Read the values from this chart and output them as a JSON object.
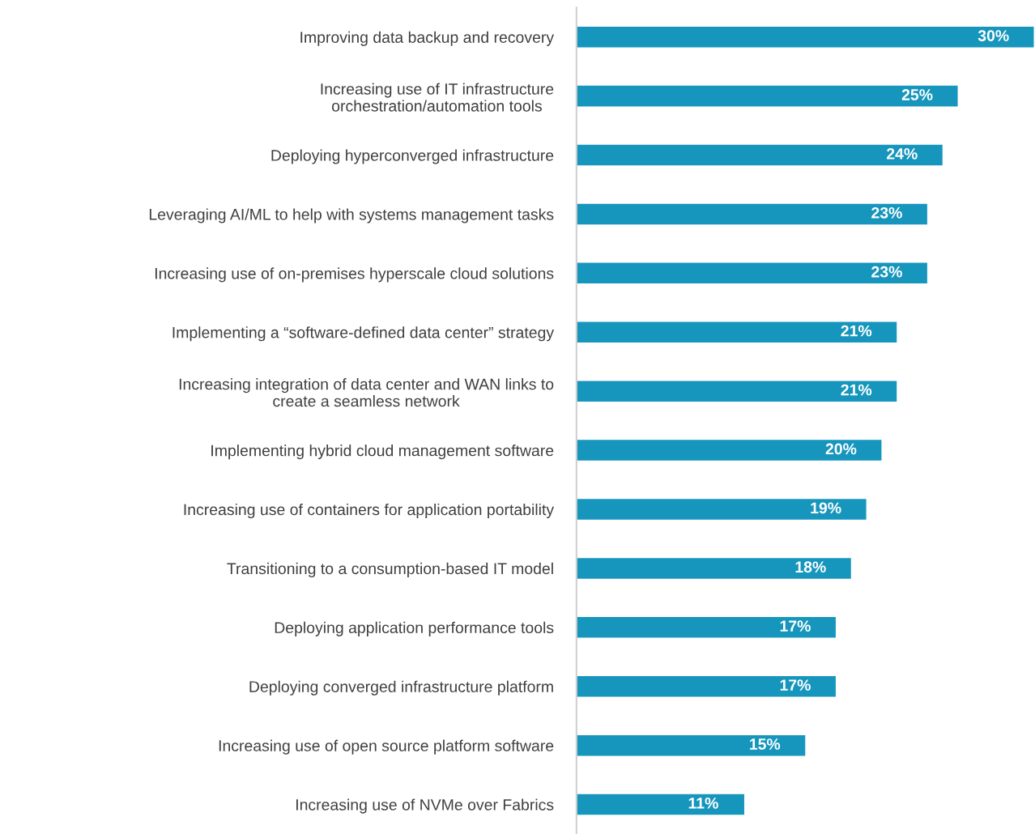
{
  "chart_data": {
    "type": "bar",
    "orientation": "horizontal",
    "categories": [
      "Improving data backup and recovery",
      "Increasing use of IT infrastructure\norchestration/automation tools",
      "Deploying hyperconverged infrastructure",
      "Leveraging AI/ML to help with systems management tasks",
      "Increasing use of on-premises hyperscale cloud solutions",
      "Implementing a “software-defined data center” strategy",
      "Increasing integration of data center and WAN links to\ncreate a seamless network",
      "Implementing hybrid cloud management software",
      "Increasing use of containers for application portability",
      "Transitioning to a consumption-based IT model",
      "Deploying application performance tools",
      "Deploying converged infrastructure platform",
      "Increasing use of open source platform software",
      "Increasing use of NVMe over Fabrics"
    ],
    "values": [
      30,
      25,
      24,
      23,
      23,
      21,
      21,
      20,
      19,
      18,
      17,
      17,
      15,
      11
    ],
    "value_labels": [
      "30%",
      "25%",
      "24%",
      "23%",
      "23%",
      "21%",
      "21%",
      "20%",
      "19%",
      "18%",
      "17%",
      "17%",
      "15%",
      "11%"
    ],
    "color": "#1796bd",
    "grid": false,
    "legend": false
  }
}
